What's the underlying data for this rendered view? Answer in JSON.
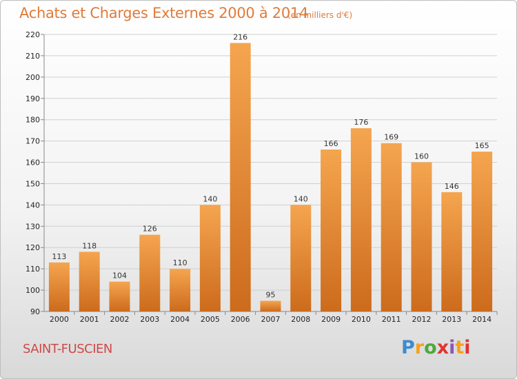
{
  "header": {
    "title": "Achats et Charges Externes 2000 à 2014",
    "unit": "(en milliers d'€)"
  },
  "footer": {
    "place": "SAINT-FUSCIEN",
    "logo": "Proxiti"
  },
  "colors": {
    "bar_light": "#f5a54f",
    "bar_dark": "#cc6b1c",
    "title": "#e07a3a",
    "place": "#d04848"
  },
  "chart_data": {
    "type": "bar",
    "title": "Achats et Charges Externes 2000 à 2014",
    "subtitle": "(en milliers d'€)",
    "categories": [
      "2000",
      "2001",
      "2002",
      "2003",
      "2004",
      "2005",
      "2006",
      "2007",
      "2008",
      "2009",
      "2010",
      "2011",
      "2012",
      "2013",
      "2014"
    ],
    "values": [
      113,
      118,
      104,
      126,
      110,
      140,
      216,
      95,
      140,
      166,
      176,
      169,
      160,
      146,
      165
    ],
    "ylim": [
      90,
      220
    ],
    "yticks": [
      90,
      100,
      110,
      120,
      130,
      140,
      150,
      160,
      170,
      180,
      190,
      200,
      210,
      220
    ],
    "grid": true,
    "legend": "none"
  }
}
